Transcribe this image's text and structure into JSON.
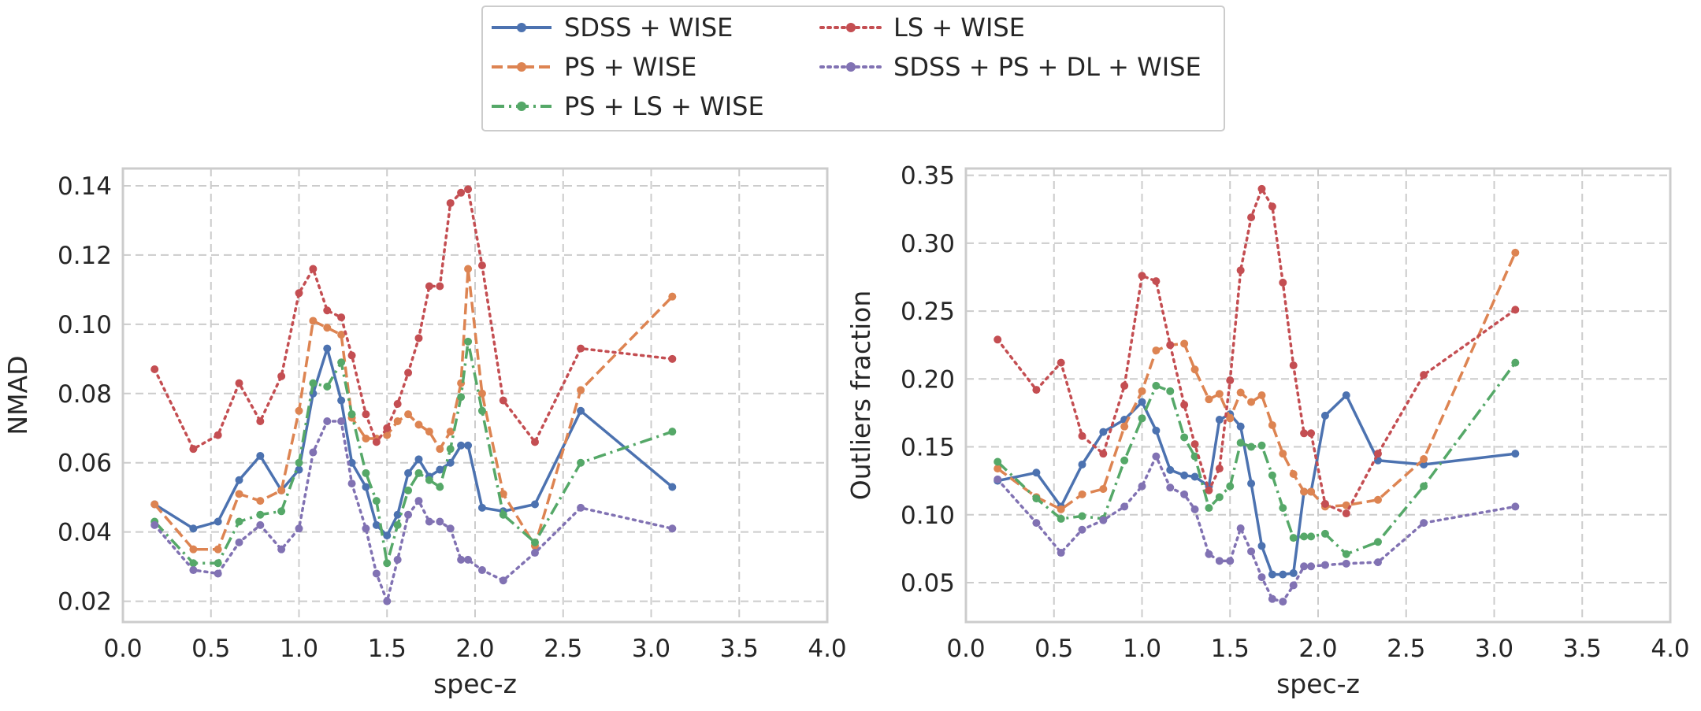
{
  "chart_data": [
    {
      "type": "line",
      "xlabel": "spec-z",
      "ylabel": "NMAD",
      "xlim": [
        0.0,
        4.0
      ],
      "ylim": [
        0.014,
        0.145
      ],
      "xticks": [
        0.0,
        0.5,
        1.0,
        1.5,
        2.0,
        2.5,
        3.0,
        3.5,
        4.0
      ],
      "xtick_labels": [
        "0.0",
        "0.5",
        "1.0",
        "1.5",
        "2.0",
        "2.5",
        "3.0",
        "3.5",
        "4.0"
      ],
      "yticks": [
        0.02,
        0.04,
        0.06,
        0.08,
        0.1,
        0.12,
        0.14
      ],
      "ytick_labels": [
        "0.02",
        "0.04",
        "0.06",
        "0.08",
        "0.10",
        "0.12",
        "0.14"
      ],
      "grid": true,
      "series": [
        {
          "name": "SDSS + WISE",
          "color": "#4c72b0",
          "dash": "solid",
          "x": [
            0.18,
            0.4,
            0.54,
            0.66,
            0.78,
            0.9,
            1.0,
            1.08,
            1.16,
            1.24,
            1.3,
            1.38,
            1.44,
            1.5,
            1.56,
            1.62,
            1.68,
            1.74,
            1.8,
            1.86,
            1.92,
            1.96,
            2.04,
            2.16,
            2.34,
            2.6,
            3.12
          ],
          "y": [
            0.048,
            0.041,
            0.043,
            0.055,
            0.062,
            0.052,
            0.058,
            0.08,
            0.093,
            0.078,
            0.06,
            0.053,
            0.042,
            0.039,
            0.045,
            0.057,
            0.061,
            0.056,
            0.058,
            0.06,
            0.065,
            0.065,
            0.047,
            0.046,
            0.048,
            0.075,
            0.053
          ]
        },
        {
          "name": "PS + WISE",
          "color": "#dd8452",
          "dash": "dashed",
          "x": [
            0.18,
            0.4,
            0.54,
            0.66,
            0.78,
            0.9,
            1.0,
            1.08,
            1.16,
            1.24,
            1.3,
            1.38,
            1.44,
            1.5,
            1.56,
            1.62,
            1.68,
            1.74,
            1.8,
            1.86,
            1.92,
            1.96,
            2.04,
            2.16,
            2.34,
            2.6,
            3.12
          ],
          "y": [
            0.048,
            0.035,
            0.035,
            0.051,
            0.049,
            0.052,
            0.075,
            0.101,
            0.099,
            0.097,
            0.073,
            0.067,
            0.067,
            0.068,
            0.072,
            0.074,
            0.071,
            0.069,
            0.064,
            0.069,
            0.083,
            0.116,
            0.08,
            0.051,
            0.036,
            0.081,
            0.108
          ]
        },
        {
          "name": "PS + LS + WISE",
          "color": "#55a868",
          "dash": "dashdot",
          "x": [
            0.18,
            0.4,
            0.54,
            0.66,
            0.78,
            0.9,
            1.0,
            1.08,
            1.16,
            1.24,
            1.3,
            1.38,
            1.44,
            1.5,
            1.56,
            1.62,
            1.68,
            1.74,
            1.8,
            1.86,
            1.92,
            1.96,
            2.04,
            2.16,
            2.34,
            2.6,
            3.12
          ],
          "y": [
            0.043,
            0.031,
            0.031,
            0.043,
            0.045,
            0.046,
            0.06,
            0.083,
            0.082,
            0.089,
            0.074,
            0.057,
            0.049,
            0.031,
            0.042,
            0.052,
            0.057,
            0.055,
            0.053,
            0.064,
            0.079,
            0.095,
            0.075,
            0.045,
            0.037,
            0.06,
            0.069
          ]
        },
        {
          "name": "LS + WISE",
          "color": "#c44e52",
          "dash": "dotted",
          "x": [
            0.18,
            0.4,
            0.54,
            0.66,
            0.78,
            0.9,
            1.0,
            1.08,
            1.16,
            1.24,
            1.3,
            1.38,
            1.44,
            1.5,
            1.56,
            1.62,
            1.68,
            1.74,
            1.8,
            1.86,
            1.92,
            1.96,
            2.04,
            2.16,
            2.34,
            2.6,
            3.12
          ],
          "y": [
            0.087,
            0.064,
            0.068,
            0.083,
            0.072,
            0.085,
            0.109,
            0.116,
            0.104,
            0.102,
            0.091,
            0.074,
            0.066,
            0.07,
            0.077,
            0.086,
            0.096,
            0.111,
            0.111,
            0.135,
            0.138,
            0.139,
            0.117,
            0.078,
            0.066,
            0.093,
            0.09
          ]
        },
        {
          "name": "SDSS + PS + DL + WISE",
          "color": "#8172b3",
          "dash": "dotted",
          "x": [
            0.18,
            0.4,
            0.54,
            0.66,
            0.78,
            0.9,
            1.0,
            1.08,
            1.16,
            1.24,
            1.3,
            1.38,
            1.44,
            1.5,
            1.56,
            1.62,
            1.68,
            1.74,
            1.8,
            1.86,
            1.92,
            1.96,
            2.04,
            2.16,
            2.34,
            2.6,
            3.12
          ],
          "y": [
            0.042,
            0.029,
            0.028,
            0.037,
            0.042,
            0.035,
            0.041,
            0.063,
            0.072,
            0.072,
            0.054,
            0.041,
            0.028,
            0.02,
            0.032,
            0.045,
            0.049,
            0.043,
            0.043,
            0.041,
            0.032,
            0.032,
            0.029,
            0.026,
            0.034,
            0.047,
            0.041
          ]
        }
      ]
    },
    {
      "type": "line",
      "xlabel": "spec-z",
      "ylabel": "Outliers fraction",
      "xlim": [
        0.0,
        4.0
      ],
      "ylim": [
        0.021,
        0.355
      ],
      "xticks": [
        0.0,
        0.5,
        1.0,
        1.5,
        2.0,
        2.5,
        3.0,
        3.5,
        4.0
      ],
      "xtick_labels": [
        "0.0",
        "0.5",
        "1.0",
        "1.5",
        "2.0",
        "2.5",
        "3.0",
        "3.5",
        "4.0"
      ],
      "yticks": [
        0.05,
        0.1,
        0.15,
        0.2,
        0.25,
        0.3,
        0.35
      ],
      "ytick_labels": [
        "0.05",
        "0.10",
        "0.15",
        "0.20",
        "0.25",
        "0.30",
        "0.35"
      ],
      "grid": true,
      "series": [
        {
          "name": "SDSS + WISE",
          "color": "#4c72b0",
          "dash": "solid",
          "x": [
            0.18,
            0.4,
            0.54,
            0.66,
            0.78,
            0.9,
            1.0,
            1.08,
            1.16,
            1.24,
            1.3,
            1.38,
            1.44,
            1.5,
            1.56,
            1.62,
            1.68,
            1.74,
            1.8,
            1.86,
            1.92,
            1.96,
            2.04,
            2.16,
            2.34,
            2.6,
            3.12
          ],
          "y": [
            0.125,
            0.131,
            0.106,
            0.137,
            0.161,
            0.17,
            0.183,
            0.162,
            0.133,
            0.129,
            0.128,
            0.121,
            0.17,
            0.174,
            0.165,
            0.123,
            0.077,
            0.056,
            0.056,
            0.057,
            0.117,
            0.117,
            0.173,
            0.188,
            0.14,
            0.137,
            0.145
          ]
        },
        {
          "name": "PS + WISE",
          "color": "#dd8452",
          "dash": "dashed",
          "x": [
            0.18,
            0.4,
            0.54,
            0.66,
            0.78,
            0.9,
            1.0,
            1.08,
            1.16,
            1.24,
            1.3,
            1.38,
            1.44,
            1.5,
            1.56,
            1.62,
            1.68,
            1.74,
            1.8,
            1.86,
            1.92,
            1.96,
            2.04,
            2.16,
            2.34,
            2.6,
            3.12
          ],
          "y": [
            0.134,
            0.113,
            0.104,
            0.115,
            0.119,
            0.165,
            0.191,
            0.221,
            0.225,
            0.226,
            0.207,
            0.185,
            0.189,
            0.171,
            0.19,
            0.183,
            0.188,
            0.166,
            0.145,
            0.13,
            0.117,
            0.117,
            0.106,
            0.107,
            0.111,
            0.141,
            0.293
          ]
        },
        {
          "name": "PS + LS + WISE",
          "color": "#55a868",
          "dash": "dashdot",
          "x": [
            0.18,
            0.4,
            0.54,
            0.66,
            0.78,
            0.9,
            1.0,
            1.08,
            1.16,
            1.24,
            1.3,
            1.38,
            1.44,
            1.5,
            1.56,
            1.62,
            1.68,
            1.74,
            1.8,
            1.86,
            1.92,
            1.96,
            2.04,
            2.16,
            2.34,
            2.6,
            3.12
          ],
          "y": [
            0.139,
            0.112,
            0.097,
            0.099,
            0.097,
            0.14,
            0.171,
            0.195,
            0.191,
            0.157,
            0.143,
            0.105,
            0.113,
            0.121,
            0.153,
            0.15,
            0.151,
            0.129,
            0.105,
            0.083,
            0.084,
            0.084,
            0.086,
            0.071,
            0.08,
            0.121,
            0.212
          ]
        },
        {
          "name": "LS + WISE",
          "color": "#c44e52",
          "dash": "dotted",
          "x": [
            0.18,
            0.4,
            0.54,
            0.66,
            0.78,
            0.9,
            1.0,
            1.08,
            1.16,
            1.24,
            1.3,
            1.38,
            1.44,
            1.5,
            1.56,
            1.62,
            1.68,
            1.74,
            1.8,
            1.86,
            1.92,
            1.96,
            2.04,
            2.16,
            2.34,
            2.6,
            3.12
          ],
          "y": [
            0.229,
            0.192,
            0.212,
            0.158,
            0.145,
            0.195,
            0.276,
            0.272,
            0.225,
            0.181,
            0.152,
            0.118,
            0.134,
            0.199,
            0.28,
            0.319,
            0.34,
            0.327,
            0.271,
            0.21,
            0.16,
            0.16,
            0.108,
            0.101,
            0.145,
            0.203,
            0.251
          ]
        },
        {
          "name": "SDSS + PS + DL + WISE",
          "color": "#8172b3",
          "dash": "dotted",
          "x": [
            0.18,
            0.4,
            0.54,
            0.66,
            0.78,
            0.9,
            1.0,
            1.08,
            1.16,
            1.24,
            1.3,
            1.38,
            1.44,
            1.5,
            1.56,
            1.62,
            1.68,
            1.74,
            1.8,
            1.86,
            1.92,
            1.96,
            2.04,
            2.16,
            2.34,
            2.6,
            3.12
          ],
          "y": [
            0.126,
            0.094,
            0.072,
            0.089,
            0.096,
            0.106,
            0.121,
            0.143,
            0.12,
            0.115,
            0.104,
            0.071,
            0.066,
            0.066,
            0.09,
            0.073,
            0.054,
            0.038,
            0.036,
            0.048,
            0.062,
            0.062,
            0.063,
            0.064,
            0.065,
            0.094,
            0.106
          ]
        }
      ]
    }
  ],
  "legend": {
    "placement": "top-center",
    "entries": [
      {
        "label": "SDSS + WISE",
        "color": "#4c72b0",
        "dash": "solid"
      },
      {
        "label": "PS + WISE",
        "color": "#dd8452",
        "dash": "dashed"
      },
      {
        "label": "PS + LS + WISE",
        "color": "#55a868",
        "dash": "dashdot"
      },
      {
        "label": "LS + WISE",
        "color": "#c44e52",
        "dash": "dotted"
      },
      {
        "label": "SDSS + PS + DL + WISE",
        "color": "#8172b3",
        "dash": "dotted"
      }
    ]
  }
}
